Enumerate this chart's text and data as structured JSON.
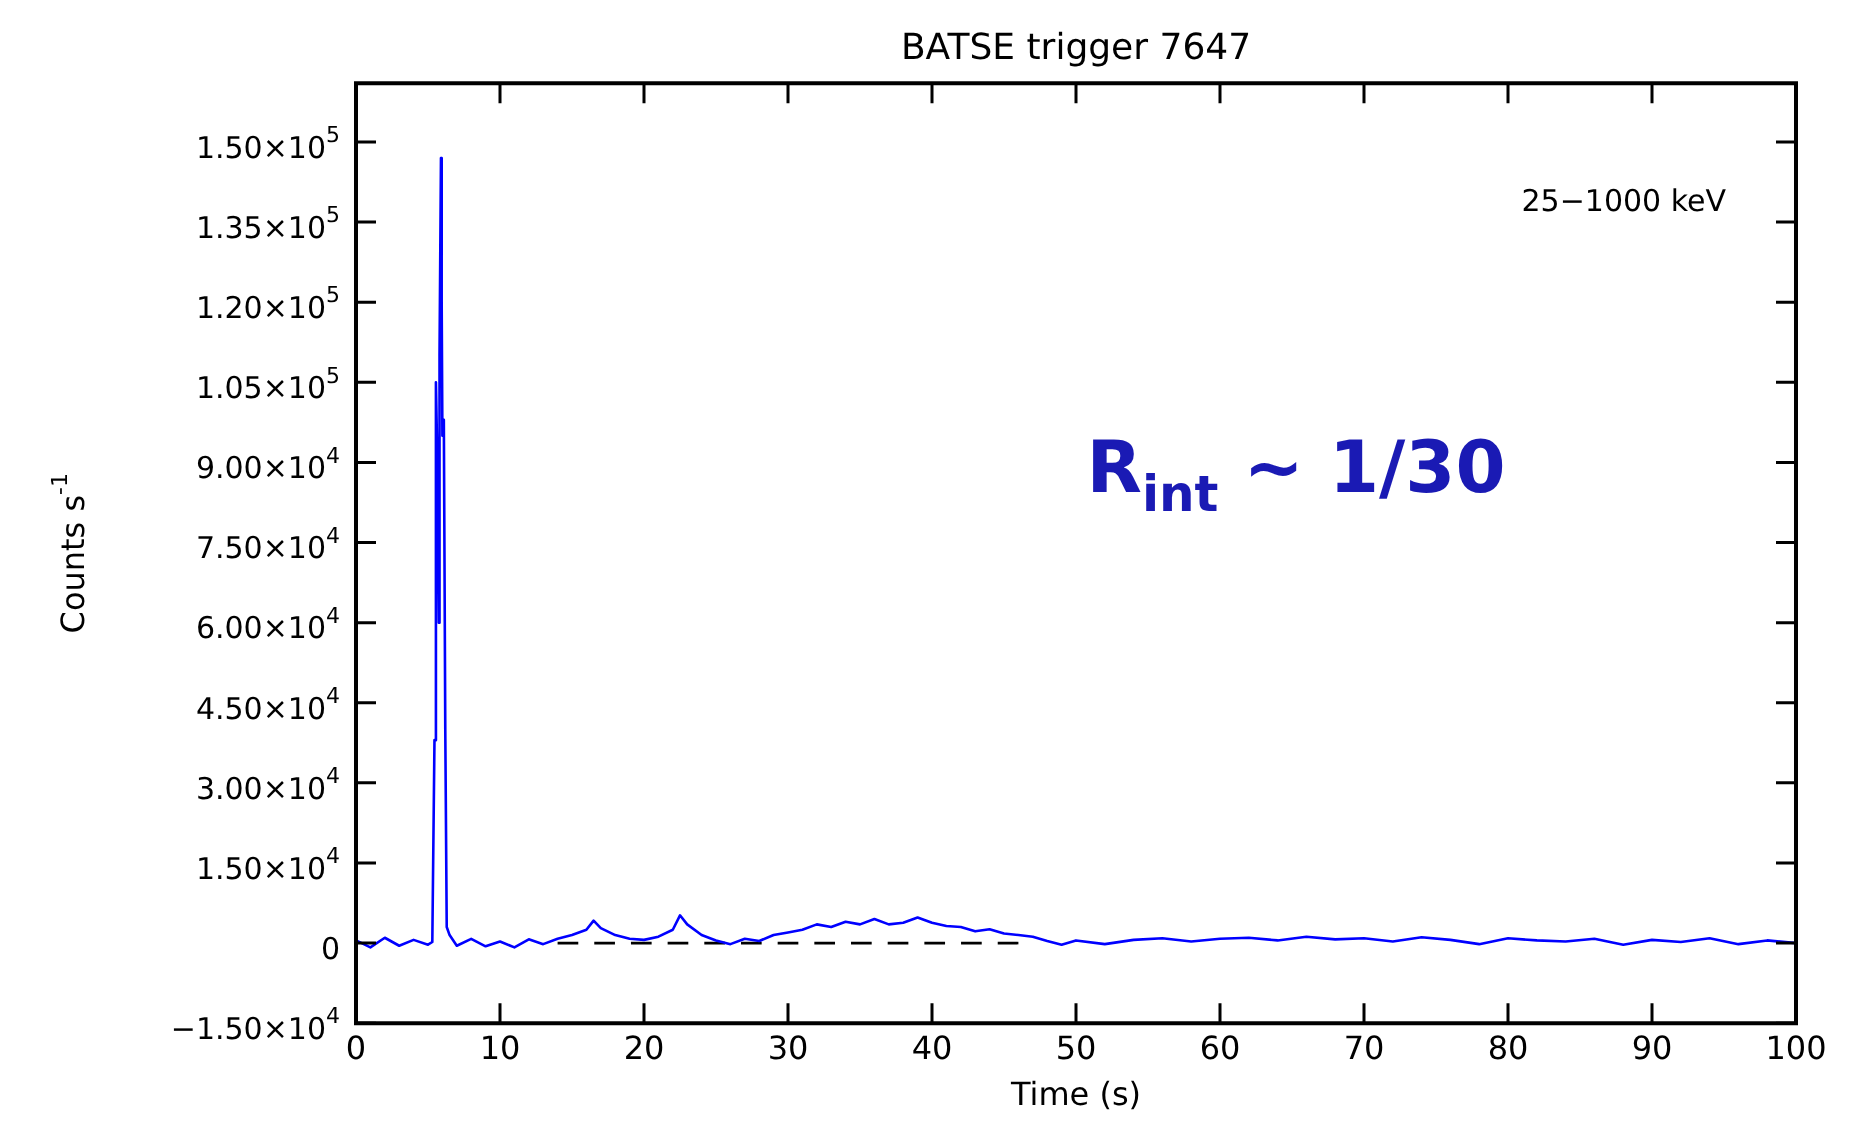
{
  "chart_data": {
    "type": "line",
    "title": "BATSE trigger 7647",
    "xlabel": "Time (s)",
    "ylabel": "Counts s$^{-1}$",
    "xlim": [
      0,
      100
    ],
    "xticks": [
      0,
      10,
      20,
      30,
      40,
      50,
      60,
      70,
      80,
      90,
      100
    ],
    "ylim": [
      -15000,
      161000
    ],
    "yticks": [
      {
        "value": -15000,
        "label": "−1.50×10$^{4}$"
      },
      0,
      {
        "value": 15000,
        "label": "1.50×10$^{4}$"
      },
      {
        "value": 30000,
        "label": "3.00×10$^{4}$"
      },
      {
        "value": 45000,
        "label": "4.50×10$^{4}$"
      },
      {
        "value": 60000,
        "label": "6.00×10$^{4}$"
      },
      {
        "value": 75000,
        "label": "7.50×10$^{4}$"
      },
      {
        "value": 90000,
        "label": "9.00×10$^{4}$"
      },
      {
        "value": 105000,
        "label": "1.05×10$^{5}$"
      },
      {
        "value": 120000,
        "label": "1.20×10$^{5}$"
      },
      {
        "value": 135000,
        "label": "1.35×10$^{5}$"
      },
      {
        "value": 150000,
        "label": "1.50×10$^{5}$"
      }
    ],
    "grid": false,
    "legend": false,
    "marker": "none",
    "annotations": [
      "25−1000 keV",
      "R$_{int}$ ~ 1/30"
    ],
    "series": [
      {
        "color": "#0000ff",
        "line_style": "solid",
        "x": [
          0,
          1,
          2,
          3,
          4,
          5,
          5.3,
          5.45,
          5.55,
          5.65,
          5.75,
          5.8,
          5.9,
          5.95,
          6.0,
          6.1,
          6.2,
          6.3,
          6.5,
          7,
          8,
          9,
          10,
          11,
          12,
          13,
          14,
          15,
          16,
          16.5,
          17,
          18,
          19,
          20,
          21,
          22,
          22.5,
          23,
          24,
          25,
          26,
          27,
          28,
          29,
          30,
          31,
          32,
          33,
          34,
          35,
          36,
          37,
          38,
          39,
          40,
          41,
          42,
          43,
          44,
          45,
          46,
          47,
          48,
          49,
          50,
          52,
          54,
          56,
          58,
          60,
          62,
          64,
          66,
          68,
          70,
          72,
          74,
          76,
          78,
          80,
          82,
          84,
          86,
          88,
          90,
          92,
          94,
          96,
          98,
          100
        ],
        "values": [
          500,
          -800,
          1000,
          -500,
          600,
          -300,
          200,
          38000,
          105000,
          90000,
          60000,
          110000,
          147000,
          120000,
          95000,
          98000,
          40000,
          3000,
          1500,
          -500,
          800,
          -600,
          300,
          -800,
          700,
          -200,
          800,
          1500,
          2500,
          4200,
          2800,
          1500,
          800,
          600,
          1200,
          2500,
          5200,
          3500,
          1500,
          500,
          -200,
          800,
          400,
          1500,
          2000,
          2500,
          3500,
          3000,
          4000,
          3500,
          4500,
          3500,
          3800,
          4800,
          3800,
          3200,
          3000,
          2200,
          2600,
          1800,
          1500,
          1200,
          400,
          -300,
          500,
          -200,
          600,
          900,
          300,
          800,
          1000,
          500,
          1200,
          700,
          900,
          300,
          1100,
          600,
          -200,
          900,
          500,
          300,
          800,
          -300,
          600,
          200,
          900,
          -200,
          500,
          0
        ]
      },
      {
        "color": "#000000",
        "line_style": "dashed",
        "x": [
          14,
          46
        ],
        "values": [
          0,
          0
        ]
      }
    ]
  }
}
